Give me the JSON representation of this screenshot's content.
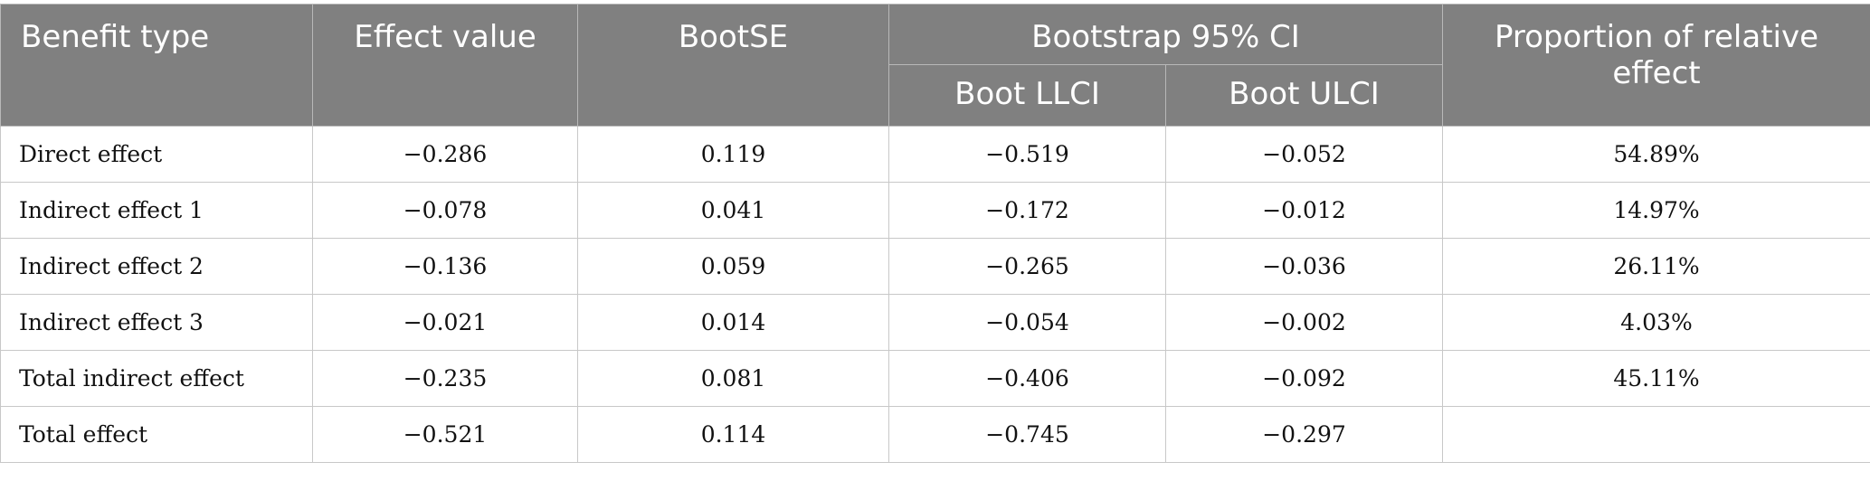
{
  "table": {
    "headers": {
      "benefit_type": "Benefit type",
      "effect_value": "Effect value",
      "boot_se": "BootSE",
      "ci_group": "Bootstrap 95% CI",
      "boot_llci": "Boot LLCI",
      "boot_ulci": "Boot ULCI",
      "proportion": "Proportion of relative effect"
    },
    "rows": [
      {
        "type": "Direct effect",
        "effect": "−0.286",
        "se": "0.119",
        "llci": "−0.519",
        "ulci": "−0.052",
        "prop": "54.89%"
      },
      {
        "type": "Indirect effect 1",
        "effect": "−0.078",
        "se": "0.041",
        "llci": "−0.172",
        "ulci": "−0.012",
        "prop": "14.97%"
      },
      {
        "type": "Indirect effect 2",
        "effect": "−0.136",
        "se": "0.059",
        "llci": "−0.265",
        "ulci": "−0.036",
        "prop": "26.11%"
      },
      {
        "type": "Indirect effect 3",
        "effect": "−0.021",
        "se": "0.014",
        "llci": "−0.054",
        "ulci": "−0.002",
        "prop": "4.03%"
      },
      {
        "type": "Total indirect effect",
        "effect": "−0.235",
        "se": "0.081",
        "llci": "−0.406",
        "ulci": "−0.092",
        "prop": "45.11%"
      },
      {
        "type": "Total effect",
        "effect": "−0.521",
        "se": "0.114",
        "llci": "−0.745",
        "ulci": "−0.297",
        "prop": ""
      }
    ]
  }
}
